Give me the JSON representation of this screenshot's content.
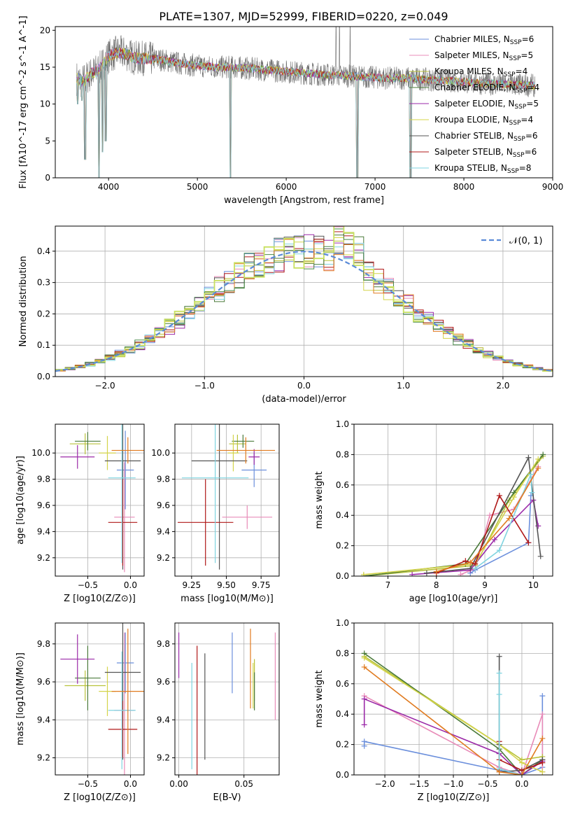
{
  "figure_title": "PLATE=1307, MJD=52999, FIBERID=0220, z=0.049",
  "colors": [
    "#6b8fdc",
    "#e88bb8",
    "#b8c23a",
    "#4a7a3a",
    "#9b2aa8",
    "#d4d44a",
    "#555555",
    "#b01818",
    "#7fd4e0",
    "#e07b20",
    "#4a8a4a",
    "#c8e060"
  ],
  "chart_data": [
    {
      "id": "spectrum",
      "type": "line",
      "xlabel": "wavelength [Angstrom, rest frame]",
      "ylabel": "Flux [fλ10^-17 erg cm^-2 s^-1 A^-1]",
      "xlim": [
        3400,
        9000
      ],
      "ylim": [
        0,
        20.5
      ],
      "xticks": [
        4000,
        5000,
        6000,
        7000,
        8000,
        9000
      ],
      "yticks": [
        0,
        5,
        10,
        15,
        20
      ],
      "grid": false,
      "legend_position": "top-right",
      "legend": [
        {
          "label": "Chabrier MILES, N",
          "sub": "SSP",
          "suffix": "=6",
          "color": "#6b8fdc"
        },
        {
          "label": "Salpeter MILES, N",
          "sub": "SSP",
          "suffix": "=5",
          "color": "#e88bb8"
        },
        {
          "label": "Kroupa MILES, N",
          "sub": "SSP",
          "suffix": "=4",
          "color": "#b8c23a"
        },
        {
          "label": "Chabrier ELODIE, N",
          "sub": "SSP",
          "suffix": "=4",
          "color": "#4a7a3a"
        },
        {
          "label": "Salpeter ELODIE, N",
          "sub": "SSP",
          "suffix": "=5",
          "color": "#9b2aa8"
        },
        {
          "label": "Kroupa ELODIE, N",
          "sub": "SSP",
          "suffix": "=4",
          "color": "#d4d44a"
        },
        {
          "label": "Chabrier STELIB, N",
          "sub": "SSP",
          "suffix": "=6",
          "color": "#555555"
        },
        {
          "label": "Salpeter STELIB, N",
          "sub": "SSP",
          "suffix": "=6",
          "color": "#b01818"
        },
        {
          "label": "Kroupa STELIB, N",
          "sub": "SSP",
          "suffix": "=8",
          "color": "#7fd4e0"
        }
      ],
      "continuum": [
        [
          3640,
          13.5
        ],
        [
          3700,
          13.0
        ],
        [
          3800,
          14.0
        ],
        [
          3900,
          14.8
        ],
        [
          4000,
          16.5
        ],
        [
          4100,
          17.0
        ],
        [
          4200,
          16.8
        ],
        [
          4300,
          16.2
        ],
        [
          4400,
          16.2
        ],
        [
          4600,
          16.0
        ],
        [
          4800,
          15.5
        ],
        [
          5000,
          15.2
        ],
        [
          5200,
          15.0
        ],
        [
          5400,
          15.0
        ],
        [
          5600,
          14.8
        ],
        [
          5800,
          14.6
        ],
        [
          6000,
          14.4
        ],
        [
          6200,
          14.2
        ],
        [
          6400,
          14.0
        ],
        [
          6600,
          13.9
        ],
        [
          6800,
          13.7
        ],
        [
          7000,
          13.6
        ],
        [
          7200,
          13.5
        ],
        [
          7400,
          13.5
        ],
        [
          7600,
          13.3
        ],
        [
          7800,
          13.2
        ],
        [
          8000,
          13.0
        ],
        [
          8200,
          12.8
        ],
        [
          8400,
          12.7
        ],
        [
          8600,
          12.6
        ],
        [
          8800,
          12.5
        ]
      ],
      "dips": [
        [
          3650,
          10.0
        ],
        [
          3700,
          10.5
        ],
        [
          3735,
          2.5
        ],
        [
          3890,
          0.0
        ],
        [
          3930,
          3.5
        ],
        [
          3968,
          5.0
        ],
        [
          5370,
          0.0
        ],
        [
          6800,
          0.0
        ],
        [
          7400,
          0.0
        ]
      ],
      "spikes": [
        [
          6560,
          20.5
        ],
        [
          6600,
          20.5
        ],
        [
          6720,
          20.5
        ]
      ]
    },
    {
      "id": "residuals",
      "type": "line",
      "xlabel": "(data-model)/error",
      "ylabel": "Normed distribution",
      "xlim": [
        -2.5,
        2.5
      ],
      "ylim": [
        0,
        0.48
      ],
      "xticks": [
        -2,
        -1,
        0,
        1,
        2
      ],
      "yticks": [
        0.0,
        0.1,
        0.2,
        0.3,
        0.4
      ],
      "grid": true,
      "legend_position": "top-right",
      "legend_label": "𝒩(0, 1)",
      "bin_width": 0.1
    },
    {
      "id": "age_vs_z",
      "type": "scatter",
      "xlabel": "Z [log10(Z/Z⊙)]",
      "ylabel": "age  [log10(age/yr)]",
      "xlim": [
        -0.88,
        0.16
      ],
      "ylim": [
        9.06,
        10.22
      ],
      "xticks": [
        -0.5,
        0.0
      ],
      "yticks": [
        9.2,
        9.4,
        9.6,
        9.8,
        10.0
      ],
      "grid": true,
      "points": [
        {
          "x": -0.06,
          "y": 9.87,
          "xerr": 0.1,
          "yerr": 0.3,
          "color": "#6b8fdc"
        },
        {
          "x": -0.07,
          "y": 9.51,
          "xerr": 0.12,
          "yerr": 0.42,
          "color": "#e88bb8"
        },
        {
          "x": -0.53,
          "y": 10.07,
          "xerr": 0.18,
          "yerr": 0.08,
          "color": "#b8c23a"
        },
        {
          "x": -0.5,
          "y": 10.09,
          "xerr": 0.15,
          "yerr": 0.07,
          "color": "#4a7a3a"
        },
        {
          "x": -0.62,
          "y": 9.97,
          "xerr": 0.2,
          "yerr": 0.09,
          "color": "#9b2aa8"
        },
        {
          "x": -0.27,
          "y": 10.0,
          "xerr": 0.1,
          "yerr": 0.13,
          "color": "#d4d44a"
        },
        {
          "x": -0.09,
          "y": 9.94,
          "xerr": 0.21,
          "yerr": 0.83,
          "color": "#555555"
        },
        {
          "x": -0.09,
          "y": 9.47,
          "xerr": 0.17,
          "yerr": 0.33,
          "color": "#b01818"
        },
        {
          "x": -0.1,
          "y": 9.81,
          "xerr": 0.16,
          "yerr": 0.65,
          "color": "#7fd4e0"
        },
        {
          "x": -0.03,
          "y": 10.02,
          "xerr": 0.19,
          "yerr": 0.1,
          "color": "#e07b20"
        }
      ]
    },
    {
      "id": "age_vs_mass",
      "type": "scatter",
      "xlabel": "mass [log10(M/M⊙)]",
      "ylabel": "",
      "xlim": [
        9.13,
        9.88
      ],
      "ylim": [
        9.06,
        10.22
      ],
      "xticks": [
        9.25,
        9.5,
        9.75
      ],
      "yticks": [
        9.2,
        9.4,
        9.6,
        9.8,
        10.0
      ],
      "grid": true,
      "points": [
        {
          "x": 9.7,
          "y": 9.87,
          "xerr": 0.09,
          "yerr": 0.13,
          "color": "#6b8fdc"
        },
        {
          "x": 9.65,
          "y": 9.51,
          "xerr": 0.18,
          "yerr": 0.09,
          "color": "#e88bb8"
        },
        {
          "x": 9.58,
          "y": 10.07,
          "xerr": 0.06,
          "yerr": 0.07,
          "color": "#b8c23a"
        },
        {
          "x": 9.62,
          "y": 10.09,
          "xerr": 0.08,
          "yerr": 0.05,
          "color": "#4a7a3a"
        },
        {
          "x": 9.7,
          "y": 9.97,
          "xerr": 0.04,
          "yerr": 0.06,
          "color": "#9b2aa8"
        },
        {
          "x": 9.55,
          "y": 10.0,
          "xerr": 0.04,
          "yerr": 0.14,
          "color": "#d4d44a"
        },
        {
          "x": 9.45,
          "y": 9.94,
          "xerr": 0.2,
          "yerr": 0.83,
          "color": "#555555"
        },
        {
          "x": 9.35,
          "y": 9.47,
          "xerr": 0.2,
          "yerr": 0.33,
          "color": "#b01818"
        },
        {
          "x": 9.42,
          "y": 9.81,
          "xerr": 0.24,
          "yerr": 0.65,
          "color": "#7fd4e0"
        },
        {
          "x": 9.64,
          "y": 10.02,
          "xerr": 0.21,
          "yerr": 0.1,
          "color": "#e07b20"
        }
      ]
    },
    {
      "id": "mass_weight_vs_age",
      "type": "line",
      "xlabel": "age  [log10(age/yr)]",
      "ylabel": "mass weight",
      "xlim": [
        6.3,
        10.4
      ],
      "ylim": [
        0,
        1.0
      ],
      "xticks": [
        7,
        8,
        9,
        10
      ],
      "yticks": [
        0.0,
        0.2,
        0.4,
        0.6,
        0.8,
        1.0
      ],
      "grid": true,
      "series": [
        {
          "color": "#6b8fdc",
          "x": [
            8.7,
            8.8,
            9.9,
            9.95
          ],
          "y": [
            0.02,
            0.04,
            0.22,
            0.53
          ]
        },
        {
          "color": "#e88bb8",
          "x": [
            8.5,
            8.8,
            9.1,
            9.6,
            10.1
          ],
          "y": [
            0.01,
            0.05,
            0.4,
            0.44,
            0.72
          ]
        },
        {
          "color": "#b8c23a",
          "x": [
            6.5,
            8.8,
            9.5,
            10.2
          ],
          "y": [
            0.0,
            0.07,
            0.5,
            0.79
          ]
        },
        {
          "color": "#4a7a3a",
          "x": [
            6.5,
            8.6,
            9.6,
            10.2
          ],
          "y": [
            0.0,
            0.08,
            0.55,
            0.8
          ]
        },
        {
          "color": "#9b2aa8",
          "x": [
            7.5,
            8.7,
            9.2,
            10.0,
            10.1
          ],
          "y": [
            0.01,
            0.04,
            0.24,
            0.5,
            0.33
          ]
        },
        {
          "color": "#d4d44a",
          "x": [
            6.5,
            8.8,
            9.6,
            10.1
          ],
          "y": [
            0.01,
            0.08,
            0.52,
            0.77
          ]
        },
        {
          "color": "#555555",
          "x": [
            7.8,
            8.7,
            9.9,
            10.15
          ],
          "y": [
            0.02,
            0.05,
            0.78,
            0.13
          ]
        },
        {
          "color": "#b01818",
          "x": [
            8.0,
            8.6,
            8.8,
            9.3,
            9.9
          ],
          "y": [
            0.02,
            0.1,
            0.08,
            0.53,
            0.22
          ]
        },
        {
          "color": "#7fd4e0",
          "x": [
            8.8,
            9.3,
            9.95,
            9.97
          ],
          "y": [
            0.05,
            0.17,
            0.67,
            0.55
          ]
        },
        {
          "color": "#e07b20",
          "x": [
            8.0,
            8.7,
            9.5,
            10.1
          ],
          "y": [
            0.03,
            0.09,
            0.38,
            0.71
          ]
        }
      ]
    },
    {
      "id": "mass_vs_z",
      "type": "scatter",
      "xlabel": "Z [log10(Z/Z⊙)]",
      "ylabel": "mass [log10(M/M⊙)]",
      "xlim": [
        -0.88,
        0.16
      ],
      "ylim": [
        9.11,
        9.91
      ],
      "xticks": [
        -0.5,
        0.0
      ],
      "yticks": [
        9.2,
        9.4,
        9.6,
        9.8
      ],
      "grid": true,
      "points": [
        {
          "x": -0.06,
          "y": 9.7,
          "xerr": 0.1,
          "yerr": 0.16,
          "color": "#6b8fdc"
        },
        {
          "x": -0.07,
          "y": 9.45,
          "xerr": 0.12,
          "yerr": 0.41,
          "color": "#e88bb8"
        },
        {
          "x": -0.53,
          "y": 9.58,
          "xerr": 0.24,
          "yerr": 0.08,
          "color": "#b8c23a"
        },
        {
          "x": -0.5,
          "y": 9.62,
          "xerr": 0.15,
          "yerr": 0.17,
          "color": "#4a7a3a"
        },
        {
          "x": -0.62,
          "y": 9.72,
          "xerr": 0.2,
          "yerr": 0.13,
          "color": "#9b2aa8"
        },
        {
          "x": -0.27,
          "y": 9.55,
          "xerr": 0.1,
          "yerr": 0.13,
          "color": "#d4d44a"
        },
        {
          "x": -0.09,
          "y": 9.65,
          "xerr": 0.21,
          "yerr": 0.46,
          "color": "#555555"
        },
        {
          "x": -0.09,
          "y": 9.35,
          "xerr": 0.17,
          "yerr": 0.15,
          "color": "#b01818"
        },
        {
          "x": -0.1,
          "y": 9.45,
          "xerr": 0.16,
          "yerr": 0.31,
          "color": "#7fd4e0"
        },
        {
          "x": -0.03,
          "y": 9.55,
          "xerr": 0.19,
          "yerr": 0.33,
          "color": "#e07b20"
        }
      ]
    },
    {
      "id": "mass_vs_ebv",
      "type": "scatter",
      "xlabel": "E(B-V)",
      "ylabel": "",
      "xlim": [
        -0.003,
        0.077
      ],
      "ylim": [
        9.11,
        9.91
      ],
      "xticks": [
        0.0,
        0.05
      ],
      "yticks": [
        9.2,
        9.4,
        9.6,
        9.8
      ],
      "grid": true,
      "points": [
        {
          "x": 0.041,
          "y": 9.7,
          "xerr": 0,
          "yerr": 0.16,
          "color": "#6b8fdc"
        },
        {
          "x": 0.074,
          "y": 9.63,
          "xerr": 0,
          "yerr": 0.23,
          "color": "#e88bb8"
        },
        {
          "x": 0.058,
          "y": 9.61,
          "xerr": 0,
          "yerr": 0.11,
          "color": "#b8c23a"
        },
        {
          "x": 0.058,
          "y": 9.55,
          "xerr": 0,
          "yerr": 0.1,
          "color": "#4a7a3a"
        },
        {
          "x": 0.0,
          "y": 9.74,
          "xerr": 0,
          "yerr": 0.12,
          "color": "#9b2aa8"
        },
        {
          "x": 0.057,
          "y": 9.58,
          "xerr": 0,
          "yerr": 0.12,
          "color": "#d4d44a"
        },
        {
          "x": 0.02,
          "y": 9.47,
          "xerr": 0,
          "yerr": 0.28,
          "color": "#555555"
        },
        {
          "x": 0.014,
          "y": 9.45,
          "xerr": 0,
          "yerr": 0.34,
          "color": "#b01818"
        },
        {
          "x": 0.01,
          "y": 9.42,
          "xerr": 0,
          "yerr": 0.28,
          "color": "#7fd4e0"
        },
        {
          "x": 0.055,
          "y": 9.67,
          "xerr": 0,
          "yerr": 0.21,
          "color": "#e07b20"
        }
      ]
    },
    {
      "id": "mass_weight_vs_z",
      "type": "line",
      "xlabel": "Z [log10(Z/Z⊙)]",
      "ylabel": "mass weight",
      "xlim": [
        -2.45,
        0.45
      ],
      "ylim": [
        0,
        1.0
      ],
      "xticks": [
        -2.0,
        -1.5,
        -1.0,
        -0.5,
        0.0
      ],
      "yticks": [
        0.0,
        0.2,
        0.4,
        0.6,
        0.8,
        1.0
      ],
      "grid": true,
      "series": [
        {
          "color": "#6b8fdc",
          "x": [
            -2.3,
            -2.3,
            -0.33,
            0.0,
            0.3,
            0.3
          ],
          "y": [
            0.19,
            0.22,
            0.03,
            0.0,
            0.05,
            0.52
          ]
        },
        {
          "color": "#e88bb8",
          "x": [
            -2.3,
            -0.33,
            0.0,
            0.3,
            0.3
          ],
          "y": [
            0.52,
            0.05,
            0.0,
            0.4,
            0.02
          ]
        },
        {
          "color": "#b8c23a",
          "x": [
            -2.3,
            -0.33,
            0.0,
            0.3
          ],
          "y": [
            0.78,
            0.2,
            0.1,
            0.12
          ]
        },
        {
          "color": "#4a7a3a",
          "x": [
            -2.3,
            -0.33,
            0.0,
            0.3
          ],
          "y": [
            0.8,
            0.17,
            0.0,
            0.1
          ]
        },
        {
          "color": "#9b2aa8",
          "x": [
            -2.3,
            -2.3,
            -0.33,
            0.0,
            0.3
          ],
          "y": [
            0.33,
            0.5,
            0.14,
            0.0,
            0.09
          ]
        },
        {
          "color": "#d4d44a",
          "x": [
            -2.3,
            -0.33,
            0.0,
            0.3
          ],
          "y": [
            0.77,
            0.2,
            0.08,
            0.02
          ]
        },
        {
          "color": "#555555",
          "x": [
            -0.33,
            -0.33,
            -0.33,
            0.0,
            0.3
          ],
          "y": [
            0.78,
            0.2,
            0.02,
            0.03,
            0.1
          ]
        },
        {
          "color": "#b01818",
          "x": [
            -0.33,
            -0.33,
            0.0,
            0.3
          ],
          "y": [
            0.22,
            0.1,
            0.03,
            0.08
          ]
        },
        {
          "color": "#7fd4e0",
          "x": [
            -0.33,
            -0.33,
            -0.33,
            0.0
          ],
          "y": [
            0.67,
            0.53,
            0.04,
            0.0
          ]
        },
        {
          "color": "#e07b20",
          "x": [
            -2.3,
            -0.33,
            0.0,
            0.3
          ],
          "y": [
            0.71,
            0.02,
            0.0,
            0.24
          ]
        }
      ]
    }
  ]
}
